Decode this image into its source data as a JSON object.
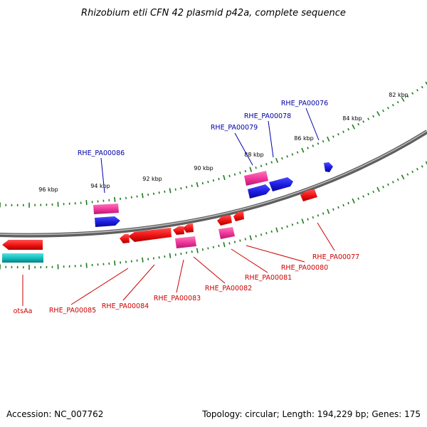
{
  "title": "Rhizobium etli CFN 42 plasmid p42a, complete sequence",
  "footer": {
    "accession": "Accession: NC_007762",
    "topology": "Topology: circular; Length: 194,229 bp; Genes: 175"
  },
  "colors": {
    "backbone": "#8c8c8c",
    "tick": "#1e7a1e",
    "gene_red": "#ee1111",
    "gene_pink": "#ee3399",
    "gene_blue": "#1a1add",
    "gene_cyan": "#11bbbb",
    "label_blue": "#0000aa",
    "label_red": "#cc0000"
  },
  "scale_labels": [
    "82 kbp",
    "84 kbp",
    "86 kbp",
    "88 kbp",
    "90 kbp",
    "92 kbp",
    "94 kbp",
    "96 kbp"
  ],
  "genes_top": [
    "RHE_PA00076",
    "RHE_PA00078",
    "RHE_PA00079",
    "RHE_PA00086"
  ],
  "genes_bottom": [
    "otsAa",
    "RHE_PA00085",
    "RHE_PA00084",
    "RHE_PA00083",
    "RHE_PA00082",
    "RHE_PA00081",
    "RHE_PA00080",
    "RHE_PA00077"
  ]
}
